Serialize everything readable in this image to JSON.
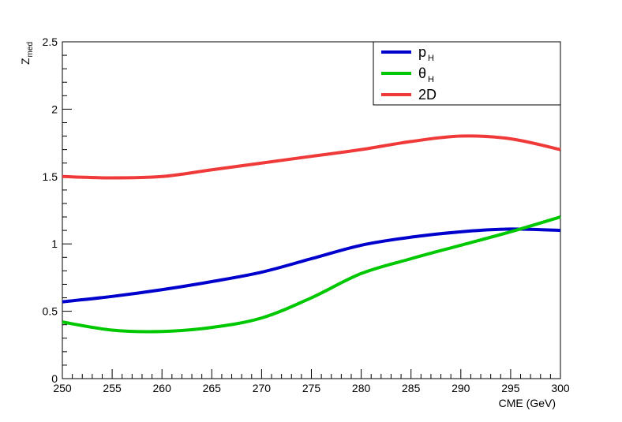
{
  "chart_data": {
    "type": "line",
    "title": "",
    "xlabel": "CME (GeV)",
    "ylabel_main": "Z",
    "ylabel_sub": "med",
    "xlim": [
      250,
      300
    ],
    "ylim": [
      0,
      2.5
    ],
    "x_major_ticks": [
      250,
      255,
      260,
      265,
      270,
      275,
      280,
      285,
      290,
      295,
      300
    ],
    "y_major_ticks": [
      0,
      0.5,
      1,
      1.5,
      2,
      2.5
    ],
    "x_tick_labels": [
      "250",
      "255",
      "260",
      "265",
      "270",
      "275",
      "280",
      "285",
      "290",
      "295",
      "300"
    ],
    "y_tick_labels": [
      "0",
      "0.5",
      "1",
      "1.5",
      "2",
      "2.5"
    ],
    "grid": false,
    "legend_position": "top-right",
    "series": [
      {
        "name_main": "p",
        "name_sub": "H",
        "color": "#0000cc",
        "x": [
          250,
          255,
          260,
          265,
          270,
          275,
          280,
          285,
          290,
          295,
          300
        ],
        "y": [
          0.57,
          0.61,
          0.66,
          0.72,
          0.79,
          0.89,
          0.99,
          1.05,
          1.09,
          1.11,
          1.1
        ]
      },
      {
        "name_main": "θ",
        "name_sub": "H",
        "color": "#00c800",
        "x": [
          250,
          255,
          260,
          265,
          270,
          275,
          280,
          285,
          290,
          295,
          300
        ],
        "y": [
          0.42,
          0.36,
          0.35,
          0.38,
          0.45,
          0.6,
          0.78,
          0.89,
          0.99,
          1.09,
          1.2
        ]
      },
      {
        "name_main": "2D",
        "name_sub": "",
        "color": "#f03a3a",
        "x": [
          250,
          255,
          260,
          265,
          270,
          275,
          280,
          285,
          290,
          295,
          300
        ],
        "y": [
          1.5,
          1.49,
          1.5,
          1.55,
          1.6,
          1.65,
          1.7,
          1.76,
          1.8,
          1.78,
          1.7
        ]
      }
    ]
  }
}
